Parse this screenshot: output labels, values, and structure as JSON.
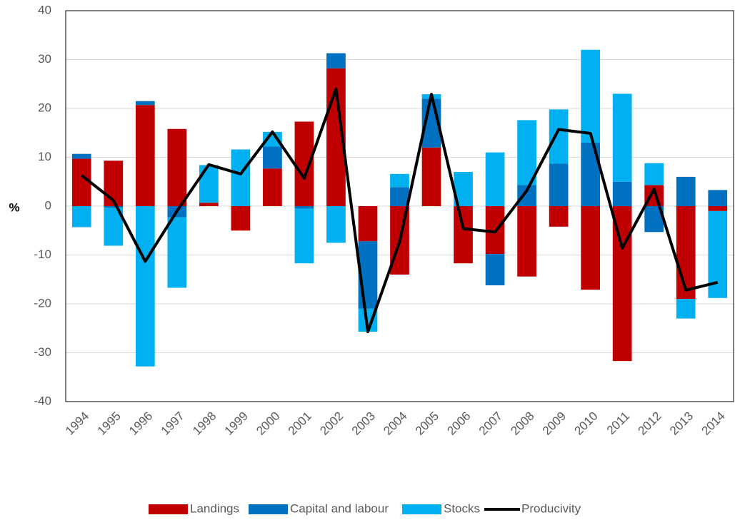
{
  "chart_data": {
    "type": "stacked-bar-line",
    "y_label": "%",
    "categories": [
      "1994",
      "1995",
      "1996",
      "1997",
      "1998",
      "1999",
      "2000",
      "2001",
      "2002",
      "2003",
      "2004",
      "2005",
      "2006",
      "2007",
      "2008",
      "2009",
      "2010",
      "2011",
      "2012",
      "2013",
      "2014"
    ],
    "series": [
      {
        "name": "Landings",
        "type": "bar",
        "color": "#c00000",
        "values": [
          9.7,
          9.3,
          20.7,
          15.8,
          0.7,
          -5,
          7.7,
          17.3,
          28.2,
          -7.2,
          -14,
          12,
          -11.7,
          -9.8,
          -14.4,
          -4.2,
          -17.1,
          -31.7,
          4.3,
          -19,
          -1
        ]
      },
      {
        "name": "Capital and labour",
        "type": "bar",
        "color": "#0070c0",
        "values": [
          1,
          -0.3,
          0.8,
          -2.3,
          0,
          0,
          4.5,
          -0.5,
          3.1,
          -13.8,
          3.9,
          10,
          0,
          -6.4,
          4.3,
          8.7,
          13,
          5,
          -5.3,
          6,
          3.3
        ]
      },
      {
        "name": "Stocks",
        "type": "bar",
        "color": "#00b0f0",
        "values": [
          -4.3,
          -7.8,
          -32.8,
          -14.4,
          7.7,
          11.6,
          3,
          -11.2,
          -7.5,
          -4.7,
          2.7,
          0.9,
          7,
          11,
          13.3,
          11.1,
          19,
          18,
          4.5,
          -4,
          -17.8
        ]
      },
      {
        "name": "Producivity",
        "type": "line",
        "color": "#000000",
        "values": [
          6.3,
          1.2,
          -11.3,
          -1,
          8.5,
          6.6,
          15.2,
          5.7,
          24,
          -25.7,
          -7.3,
          22.9,
          -4.6,
          -5.3,
          3.2,
          15.7,
          14.9,
          -8.6,
          3.5,
          -17.2,
          -15.6
        ]
      }
    ],
    "ylim": [
      -40,
      40
    ],
    "yticks": [
      -40,
      -30,
      -20,
      -10,
      0,
      10,
      20,
      30,
      40
    ],
    "grid": true,
    "legend": "bottom"
  }
}
